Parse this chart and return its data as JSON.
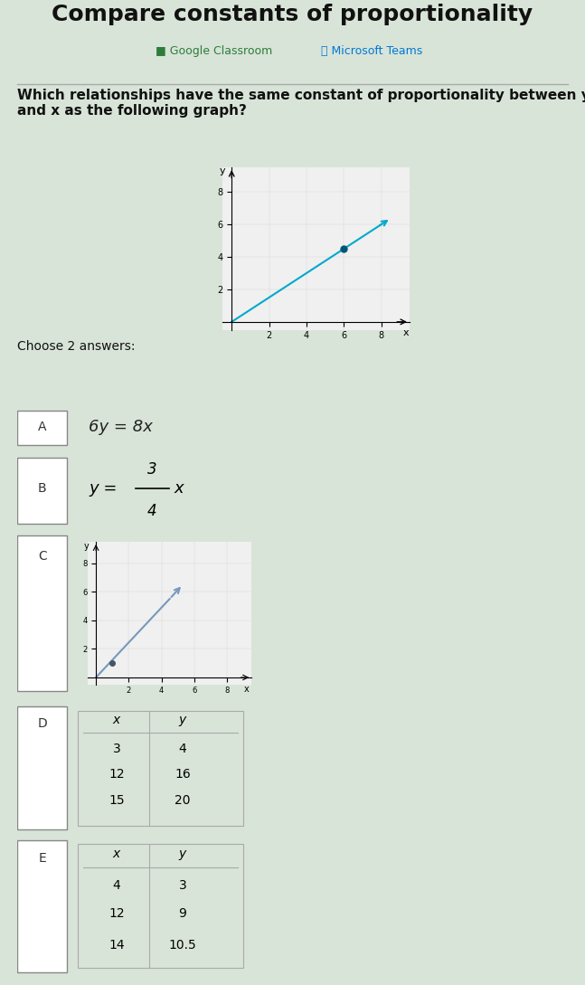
{
  "title": "Compare constants of proportionality",
  "subtitle_google": "■ Google Classroom",
  "subtitle_ms": "⦿ Microsoft Teams",
  "question": "Which relationships have the same constant of proportionality between y\nand x as the following graph?",
  "choose_text": "Choose 2 answers:",
  "bg_color": "#d8e4d8",
  "main_graph": {
    "x_data": [
      0,
      8
    ],
    "y_data": [
      0,
      6
    ],
    "dot_x": 6,
    "dot_y": 4.5,
    "color": "#00aacc",
    "xlim": [
      -0.5,
      9.5
    ],
    "ylim": [
      -0.5,
      9.5
    ],
    "xticks": [
      2,
      4,
      6,
      8
    ],
    "yticks": [
      2,
      4,
      6,
      8
    ]
  },
  "option_c_graph": {
    "x_data": [
      0,
      4.5
    ],
    "y_data": [
      0,
      5.5
    ],
    "dot_x": 1,
    "dot_y": 1,
    "color": "#7799bb",
    "xlim": [
      -0.5,
      9.5
    ],
    "ylim": [
      -0.5,
      9.5
    ],
    "xticks": [
      2,
      4,
      6,
      8
    ],
    "yticks": [
      2,
      4,
      6,
      8
    ]
  },
  "option_a_text": "6y = 8x",
  "table_d_headers": [
    "x",
    "y"
  ],
  "table_d_data": [
    [
      3,
      4
    ],
    [
      12,
      16
    ],
    [
      15,
      20
    ]
  ],
  "table_e_headers": [
    "x",
    "y"
  ],
  "table_e_data": [
    [
      4,
      3
    ],
    [
      12,
      9
    ],
    [
      14,
      "10.5"
    ]
  ],
  "label_colors": {
    "google_green": "#2d7d3a",
    "ms_blue": "#0078d4",
    "title_color": "#111111",
    "question_color": "#111111",
    "option_text_color": "#222222",
    "header_bar_color": "#7a8fa6"
  }
}
